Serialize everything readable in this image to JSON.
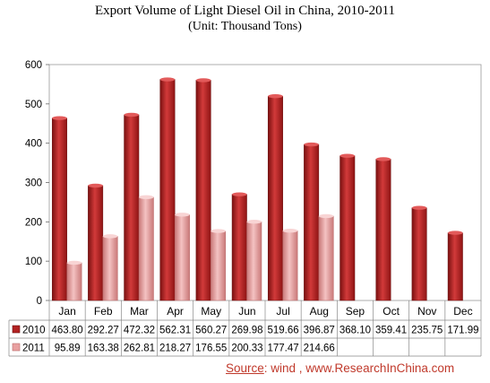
{
  "chart_data": {
    "type": "bar",
    "title": "Export Volume of Light Diesel Oil in China, 2010-2011",
    "subtitle": "(Unit: Thousand Tons)",
    "categories": [
      "Jan",
      "Feb",
      "Mar",
      "Apr",
      "May",
      "Jun",
      "Jul",
      "Aug",
      "Sep",
      "Oct",
      "Nov",
      "Dec"
    ],
    "series": [
      {
        "name": "2010",
        "values": [
          463.8,
          292.27,
          472.32,
          562.31,
          560.27,
          269.98,
          519.66,
          396.87,
          368.1,
          359.41,
          235.75,
          171.99
        ],
        "color": "#b22222",
        "labels": [
          "463.80",
          "292.27",
          "472.32",
          "562.31",
          "560.27",
          "269.98",
          "519.66",
          "396.87",
          "368.10",
          "359.41",
          "235.75",
          "171.99"
        ]
      },
      {
        "name": "2011",
        "values": [
          95.89,
          163.38,
          262.81,
          218.27,
          176.55,
          200.33,
          177.47,
          214.66,
          null,
          null,
          null,
          null
        ],
        "color": "#e8a0a0",
        "labels": [
          "95.89",
          "163.38",
          "262.81",
          "218.27",
          "176.55",
          "200.33",
          "177.47",
          "214.66",
          "",
          "",
          "",
          ""
        ]
      }
    ],
    "ylim": [
      0,
      600
    ],
    "yticks": [
      "0",
      "100",
      "200",
      "300",
      "400",
      "500",
      "600"
    ],
    "grid": false,
    "legend": "data-table"
  },
  "source": {
    "prefix": "Source",
    "rest": ": wind ,  www.ResearchInChina.com"
  }
}
